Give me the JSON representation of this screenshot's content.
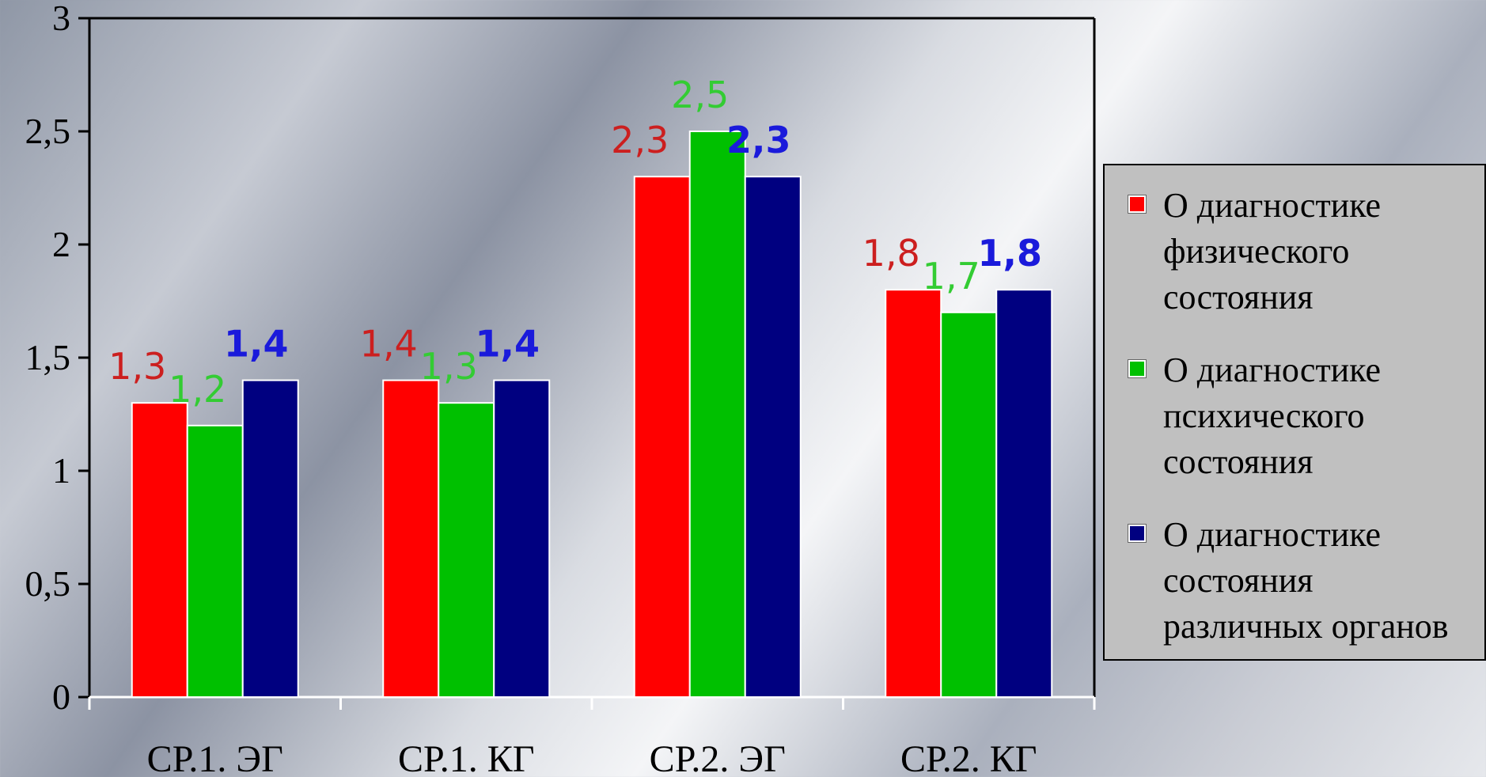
{
  "chart_data": {
    "type": "bar",
    "title": "",
    "xlabel": "",
    "ylabel": "",
    "categories": [
      "СР.1. ЭГ",
      "СР.1. КГ",
      "СР.2. ЭГ",
      "СР.2. КГ"
    ],
    "series": [
      {
        "name": "О диагностике физического состояния",
        "name_lines": [
          "О диагностике",
          "физического",
          "состояния"
        ],
        "color": "#ff0000",
        "label_color": "#cc1f1f",
        "label_bold": false,
        "values": [
          1.3,
          1.4,
          2.3,
          1.8
        ],
        "labels": [
          "1,3",
          "1,4",
          "2,3",
          "1,8"
        ]
      },
      {
        "name": "О диагностике психического состояния",
        "name_lines": [
          "О диагностике",
          "психического",
          "состояния"
        ],
        "color": "#00c000",
        "label_color": "#33cc33",
        "label_bold": false,
        "values": [
          1.2,
          1.3,
          2.5,
          1.7
        ],
        "labels": [
          "1,2",
          "1,3",
          "2,5",
          "1,7"
        ]
      },
      {
        "name": "О диагностике состояния различных органов",
        "name_lines": [
          "О диагностике",
          "состояния",
          "различных органов"
        ],
        "color": "#000080",
        "label_color": "#1a1adb",
        "label_bold": true,
        "values": [
          1.4,
          1.4,
          2.3,
          1.8
        ],
        "labels": [
          "1,4",
          "1,4",
          "2,3",
          "1,8"
        ]
      }
    ],
    "ylim": [
      0,
      3
    ],
    "yticks": [
      0,
      0.5,
      1,
      1.5,
      2,
      2.5,
      3
    ],
    "ytick_labels": [
      "0",
      "0,5",
      "1",
      "1,5",
      "2",
      "2,5",
      "3"
    ],
    "grid": false,
    "legend_position": "right"
  }
}
